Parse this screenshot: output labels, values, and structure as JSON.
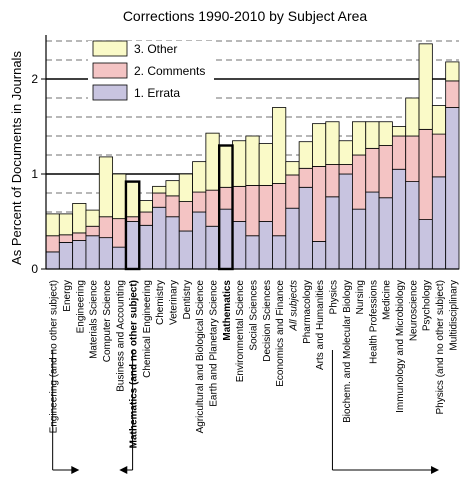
{
  "chart_data": {
    "type": "bar",
    "stacked": true,
    "title": "Corrections 1990-2010 by Subject Area",
    "xlabel": "",
    "ylabel": "As Percent of Documents in Journals",
    "ylim": [
      0,
      2.4
    ],
    "yticks": [
      "0",
      "1",
      "2"
    ],
    "gridlines": [
      1,
      2
    ],
    "legend_placement": "top-left",
    "colors": {
      "errata": "#c8c4e0",
      "comments": "#f4c4c4",
      "other": "#fafac8"
    },
    "categories": [
      "Engineering (and no other subject)",
      "Energy",
      "Engineering",
      "Materials Science",
      "Computer Science",
      "Business and Accounting",
      "Mathematics (and no other subject)",
      "Chemical Engineering",
      "Chemistry",
      "Veterinary",
      "Dentistry",
      "Agricultural and Biological Science",
      "Earth and Planetary Science",
      "Mathematics",
      "Environmental Science",
      "Social Sciences",
      "Decision Sciences",
      "Economics and Finance",
      "All subjects",
      "Pharmacology",
      "Arts and Humanities",
      "Physics",
      "Biochem. and Molecular Biology",
      "Nursing",
      "Health Professions",
      "Medicine",
      "Immunology and Microbiology",
      "Neuroscience",
      "Psychology",
      "Physics (and no other subject)",
      "Multidisciplinary"
    ],
    "category_styles": [
      "",
      "",
      "",
      "",
      "",
      "",
      "bold",
      "",
      "",
      "",
      "",
      "",
      "",
      "bold",
      "",
      "",
      "",
      "",
      "italic",
      "",
      "",
      "",
      "",
      "",
      "",
      "",
      "",
      "",
      "",
      "",
      ""
    ],
    "highlighted": [
      6,
      13
    ],
    "series": [
      {
        "name": "1. Errata",
        "values": [
          0.18,
          0.28,
          0.3,
          0.35,
          0.33,
          0.23,
          0.5,
          0.46,
          0.65,
          0.55,
          0.4,
          0.6,
          0.45,
          0.63,
          0.5,
          0.35,
          0.5,
          0.35,
          0.64,
          0.86,
          0.29,
          0.76,
          1.0,
          0.63,
          0.81,
          0.75,
          1.05,
          0.92,
          0.52,
          0.97,
          1.7
        ]
      },
      {
        "name": "2. Comments",
        "values": [
          0.17,
          0.08,
          0.08,
          0.1,
          0.22,
          0.3,
          0.05,
          0.14,
          0.15,
          0.22,
          0.31,
          0.21,
          0.38,
          0.23,
          0.37,
          0.53,
          0.38,
          0.55,
          0.35,
          0.2,
          0.79,
          0.34,
          0.1,
          0.57,
          0.46,
          0.55,
          0.35,
          0.48,
          0.95,
          0.45,
          0.28
        ]
      },
      {
        "name": "3. Other",
        "values": [
          0.23,
          0.22,
          0.31,
          0.17,
          0.63,
          0.47,
          0.37,
          0.12,
          0.07,
          0.16,
          0.29,
          0.32,
          0.6,
          0.44,
          0.48,
          0.52,
          0.44,
          0.8,
          0.14,
          0.28,
          0.45,
          0.45,
          0.25,
          0.35,
          0.28,
          0.25,
          0.1,
          0.4,
          0.9,
          0.3,
          0.2
        ]
      }
    ],
    "annotations": {
      "bracket_left": "Engineering to Mathematics (and no other subject)",
      "bracket_right": "Physics to Physics (and no other subject)"
    }
  }
}
